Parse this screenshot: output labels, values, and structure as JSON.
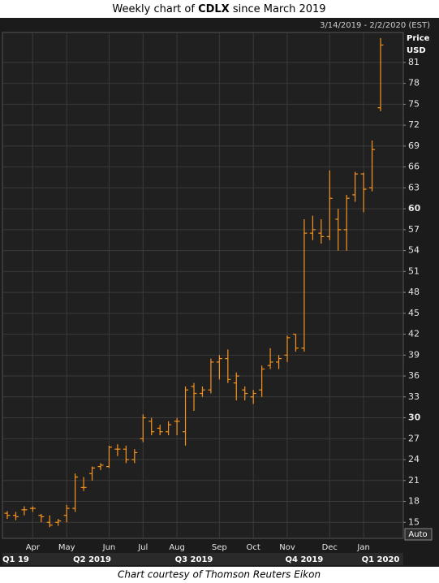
{
  "chart_data": {
    "type": "ohlc",
    "title_prefix": "Weekly chart of ",
    "title_ticker": "CDLX",
    "title_suffix": " since March 2019",
    "date_range": "3/14/2019 - 2/2/2020 (EST)",
    "ylabel": "Price",
    "yunit": "USD",
    "button": "Auto",
    "caption": "Chart courtesy of Thomson Reuters Eikon",
    "color": "#f7941d",
    "grid": true,
    "ylim": [
      12.7,
      85.3
    ],
    "yticks": [
      15,
      18,
      21,
      24,
      27,
      30,
      33,
      36,
      39,
      42,
      45,
      48,
      51,
      54,
      57,
      60,
      63,
      66,
      69,
      72,
      75,
      78,
      81
    ],
    "bold_yticks": [
      30,
      60
    ],
    "categories": [
      null,
      null,
      null,
      "Apr",
      null,
      null,
      null,
      "May",
      null,
      null,
      null,
      null,
      "Jun",
      null,
      null,
      null,
      "Jul",
      null,
      null,
      null,
      "Aug",
      null,
      null,
      null,
      null,
      "Sep",
      null,
      null,
      null,
      "Oct",
      null,
      null,
      null,
      "Nov",
      null,
      null,
      null,
      null,
      "Dec",
      null,
      null,
      null,
      "Jan",
      null,
      null
    ],
    "quarters": [
      null,
      "Q1 19",
      null,
      null,
      null,
      null,
      null,
      null,
      null,
      null,
      "Q2 2019",
      null,
      null,
      null,
      null,
      null,
      null,
      null,
      null,
      null,
      null,
      null,
      "Q3 2019",
      null,
      null,
      null,
      null,
      null,
      null,
      null,
      null,
      null,
      null,
      null,
      null,
      "Q4 2019",
      null,
      null,
      null,
      null,
      null,
      null,
      null,
      null,
      "Q1 2020"
    ],
    "open": [
      16.3,
      16,
      16.8,
      17,
      16,
      15,
      15,
      16,
      17,
      20,
      22,
      23,
      23,
      25.5,
      25.5,
      24,
      27,
      29.5,
      28.5,
      28,
      29.5,
      28,
      34.5,
      33.5,
      34,
      38,
      38.5,
      35,
      34,
      33,
      34,
      37.5,
      38,
      39,
      42,
      40,
      56.5,
      56.5,
      56,
      58.5,
      57,
      62,
      65,
      63,
      74.5
    ],
    "high": [
      16.6,
      16.5,
      17.3,
      17.3,
      16.2,
      16,
      15.5,
      17.5,
      22,
      21.5,
      23,
      23.5,
      26,
      26.2,
      26,
      25.5,
      30.5,
      30,
      29,
      29.5,
      30,
      34.5,
      35,
      34.5,
      38.5,
      39,
      39.8,
      36.5,
      34.5,
      34,
      37.5,
      40,
      39,
      41.8,
      42,
      58.5,
      59,
      58.5,
      65.5,
      60,
      62,
      65.3,
      65.2,
      69.8,
      84.5
    ],
    "low": [
      15.5,
      15.3,
      16,
      16.5,
      15,
      14.3,
      14.5,
      15,
      16.5,
      19.5,
      21,
      22.5,
      22.8,
      24.5,
      23.5,
      23.5,
      26.5,
      27.5,
      27.5,
      27.5,
      27.5,
      26,
      31,
      33,
      33.5,
      35.5,
      35,
      32.5,
      32.5,
      32,
      33,
      37,
      37,
      38,
      39.5,
      39.5,
      55.5,
      55,
      55.5,
      54,
      54,
      61,
      59.5,
      62.5,
      74
    ],
    "close": [
      16,
      15.8,
      16.8,
      17,
      15.8,
      14.6,
      15.2,
      17,
      21.5,
      20,
      22.8,
      23.2,
      25.8,
      25.5,
      24,
      25,
      30,
      28,
      28,
      29,
      29.5,
      34,
      33.5,
      34,
      38,
      38.5,
      35.5,
      36,
      33.5,
      33.5,
      37,
      38,
      38.5,
      41.5,
      40,
      56.5,
      57,
      56,
      61.5,
      57,
      61.5,
      65,
      62.8,
      68.5,
      83.5
    ]
  }
}
